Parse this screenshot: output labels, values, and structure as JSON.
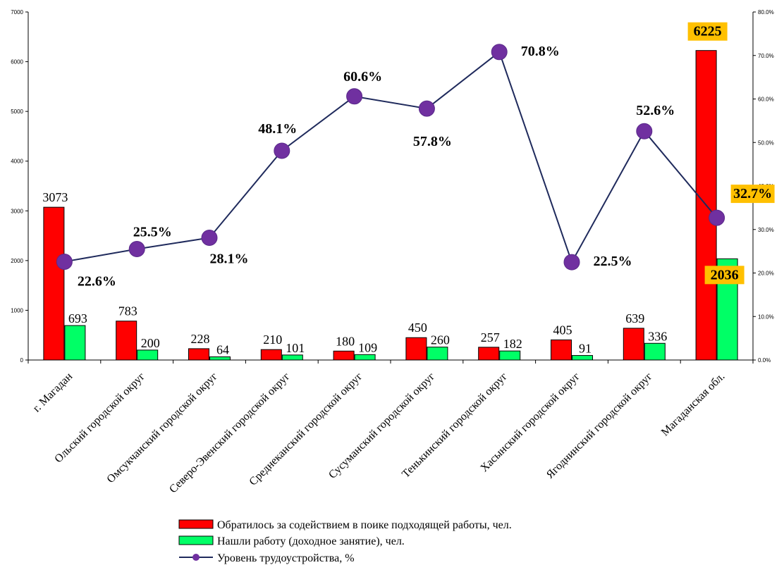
{
  "chart_data": {
    "type": "bar",
    "categories": [
      "г. Магадан",
      "Ольский городской округ",
      "Омсукчанский городской округ",
      "Северо-Эвенский городской округ",
      "Среднеканский городской округ",
      "Сусуманский городской округ",
      "Тенькинский городской округ",
      "Хасынский городской округ",
      "Ягоднинский городской округ",
      "Магаданская обл."
    ],
    "series": [
      {
        "name": "Обратилось за содействием в поике подходящей работы, чел.",
        "type": "bar",
        "axis": "left",
        "color": "#FF0000",
        "values": [
          3073,
          783,
          228,
          210,
          180,
          450,
          257,
          405,
          639,
          6225
        ],
        "labels": [
          "3073",
          "783",
          "228",
          "210",
          "180",
          "450",
          "257",
          "405",
          "639",
          "6225"
        ]
      },
      {
        "name": "Нашли работу (доходное занятие), чел.",
        "type": "bar",
        "axis": "left",
        "color": "#00FF66",
        "values": [
          693,
          200,
          64,
          101,
          109,
          260,
          182,
          91,
          336,
          2036
        ],
        "labels": [
          "693",
          "200",
          "64",
          "101",
          "109",
          "260",
          "182",
          "91",
          "336",
          "2036"
        ]
      },
      {
        "name": "Уровень трудоустройства, %",
        "type": "line",
        "axis": "right",
        "color": "#1F2A5C",
        "marker_color": "#7030A0",
        "values": [
          22.6,
          25.5,
          28.1,
          48.1,
          60.6,
          57.8,
          70.8,
          22.5,
          52.6,
          32.7
        ],
        "labels": [
          "22.6%",
          "25.5%",
          "28.1%",
          "48.1%",
          "60.6%",
          "57.8%",
          "70.8%",
          "22.5%",
          "52.6%",
          "32.7%"
        ]
      }
    ],
    "y_left": {
      "ylim": [
        0,
        7000
      ],
      "ticks": [
        "0",
        "1000",
        "2000",
        "3000",
        "4000",
        "5000",
        "6000",
        "7000"
      ]
    },
    "y_right": {
      "ylim": [
        0,
        80
      ],
      "ticks": [
        "0.0%",
        "10.0%",
        "20.0%",
        "30.0%",
        "40.0%",
        "50.0%",
        "60.0%",
        "70.0%",
        "80.0%"
      ]
    },
    "highlight_color": "#FFC000",
    "legend_position": "bottom",
    "grid": false
  }
}
